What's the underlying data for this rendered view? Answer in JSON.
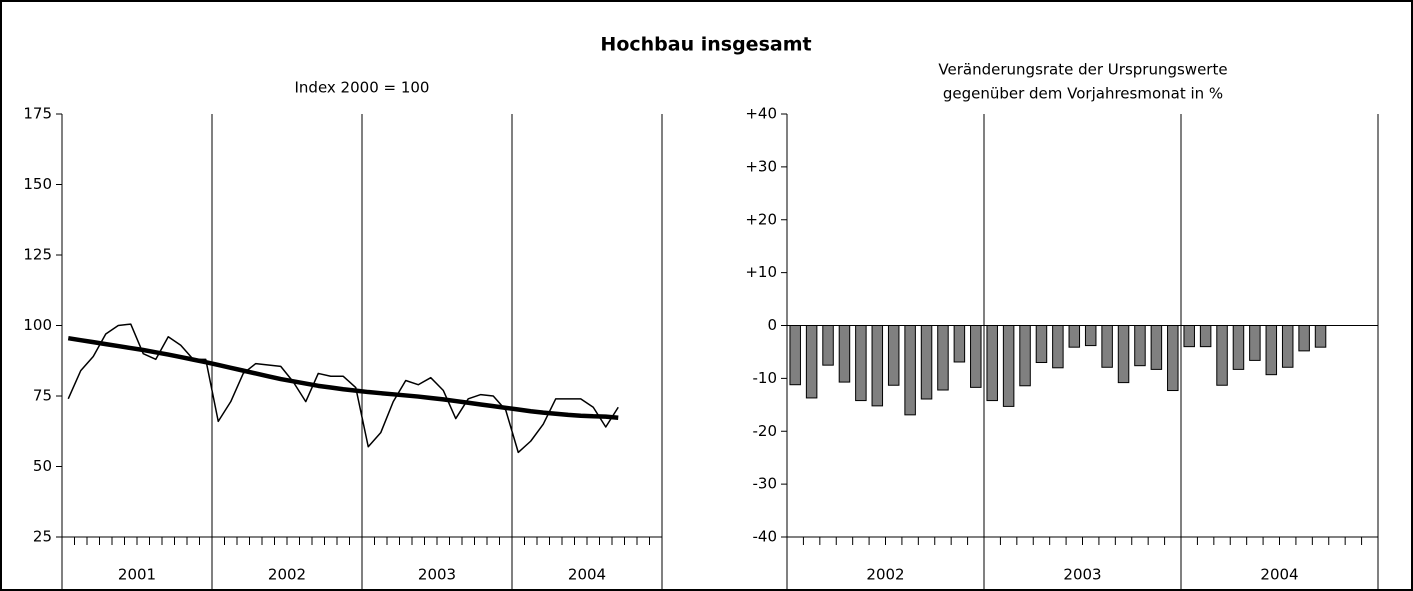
{
  "title": "Hochbau insgesamt",
  "chart_data": [
    {
      "type": "line",
      "subtitle": [
        "Index 2000 = 100"
      ],
      "years": [
        "2001",
        "2002",
        "2003",
        "2004"
      ],
      "ylim": [
        25,
        175
      ],
      "yticks": [
        25,
        50,
        75,
        100,
        125,
        150,
        175
      ],
      "grid": true,
      "series": [
        {
          "color": "#000000",
          "values": [
            74,
            84,
            89,
            97,
            100,
            100.5,
            90,
            88,
            96,
            93,
            88,
            88,
            66,
            73,
            83,
            86.5,
            86,
            85.5,
            80,
            73,
            83,
            82,
            82,
            78,
            57,
            62,
            73,
            80.5,
            79,
            81.5,
            77,
            67,
            74,
            75.5,
            75,
            70,
            55,
            59,
            65,
            74,
            74,
            74,
            71,
            64,
            71
          ]
        },
        {
          "color": "#000000",
          "values": [
            95.5,
            94.8,
            94.1,
            93.4,
            92.7,
            92,
            91.3,
            90.5,
            89.7,
            88.8,
            87.9,
            87,
            86,
            85,
            84,
            83,
            82,
            81,
            80.2,
            79.4,
            78.6,
            78,
            77.4,
            76.9,
            76.4,
            76,
            75.6,
            75.2,
            74.8,
            74.3,
            73.8,
            73.2,
            72.6,
            72,
            71.4,
            70.8,
            70.2,
            69.6,
            69.1,
            68.7,
            68.3,
            68,
            67.8,
            67.7,
            67.3
          ]
        }
      ]
    },
    {
      "type": "bar",
      "subtitle": [
        "Veränderungsrate der Ursprungswerte",
        "gegenüber dem Vorjahresmonat in %"
      ],
      "years": [
        "2002",
        "2003",
        "2004"
      ],
      "ylim": [
        -40,
        40
      ],
      "yticks": [
        -40,
        -30,
        -20,
        -10,
        0,
        {
          "value": 10,
          "label": "+10"
        },
        {
          "value": 20,
          "label": "+20"
        },
        {
          "value": 30,
          "label": "+30"
        },
        {
          "value": 40,
          "label": "+40"
        }
      ],
      "grid": true,
      "color": "#808080",
      "values": [
        -11.2,
        -13.7,
        -7.5,
        -10.7,
        -14.2,
        -15.2,
        -11.3,
        -16.9,
        -13.9,
        -12.2,
        -6.9,
        -11.7,
        -14.2,
        -15.3,
        -11.4,
        -7,
        -8,
        -4.1,
        -3.8,
        -7.9,
        -10.8,
        -7.6,
        -8.3,
        -12.3,
        -4,
        -4,
        -11.3,
        -8.3,
        -6.6,
        -9.3,
        -7.9,
        -4.8,
        -4.1
      ]
    }
  ]
}
